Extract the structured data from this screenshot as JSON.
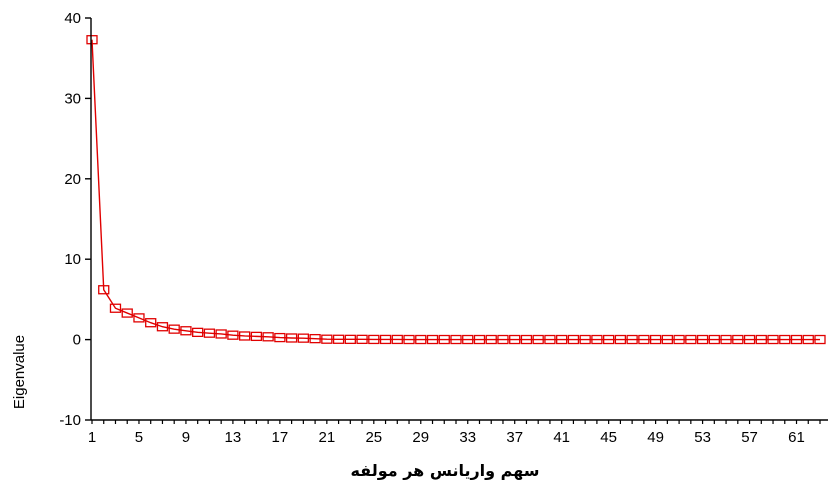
{
  "chart_data": {
    "type": "line",
    "xlabel": "سهم واریانس هر مولفه",
    "ylabel": "Eigenvalue",
    "x_tick_labels": [
      "1",
      "5",
      "9",
      "13",
      "17",
      "21",
      "25",
      "29",
      "33",
      "37",
      "41",
      "45",
      "49",
      "53",
      "57",
      "61"
    ],
    "y_tick_labels": [
      "-10",
      "0",
      "10",
      "20",
      "30",
      "40"
    ],
    "xlim": [
      1,
      63
    ],
    "ylim": [
      -10,
      40
    ],
    "grid": false,
    "legend": "none",
    "line_color": "#e00000",
    "marker": "open-square",
    "series": [
      {
        "values": [
          37.3,
          6.2,
          3.9,
          3.3,
          2.7,
          2.1,
          1.6,
          1.3,
          1.1,
          0.9,
          0.8,
          0.7,
          0.55,
          0.45,
          0.4,
          0.35,
          0.25,
          0.2,
          0.18,
          0.12,
          0.05,
          0.04,
          0.03,
          0.03,
          0.02,
          0.02,
          0.02,
          0.01,
          0.01,
          0.01,
          0.01,
          0.01,
          0.01,
          0.01,
          0.01,
          0.01,
          0.01,
          0.01,
          0.01,
          0.01,
          0.01,
          0.01,
          0.01,
          0.01,
          0.01,
          0.01,
          0.01,
          0.01,
          0.01,
          0.01,
          0.01,
          0.01,
          0.01,
          0.01,
          0.01,
          0.01,
          0.01,
          0.01,
          0.01,
          0.01,
          0.01,
          0.01,
          0.01
        ]
      }
    ]
  }
}
